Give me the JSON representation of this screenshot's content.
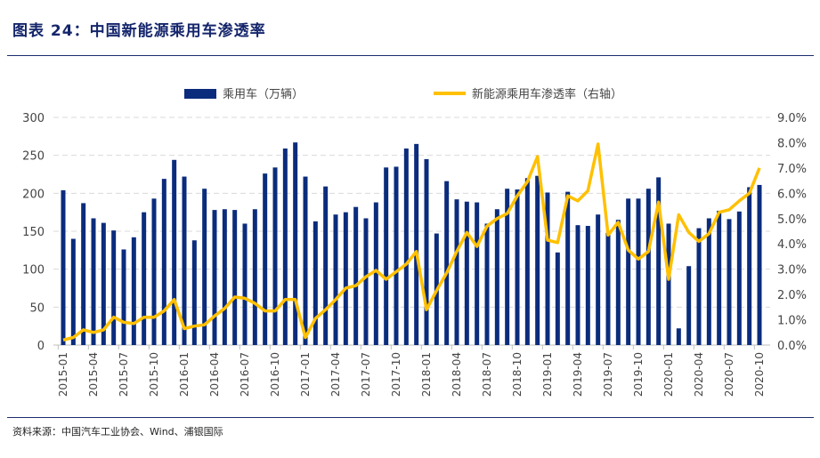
{
  "title": "图表 24：中国新能源乘用车渗透率",
  "source": "资料来源：中国汽车工业协会、Wind、浦银国际",
  "colors": {
    "bar": "#0b2c7c",
    "line": "#ffc000",
    "title": "#14256b"
  },
  "chart_data": {
    "type": "bar+line",
    "legend_position": "top",
    "grid": "horizontal dashed",
    "x": [
      "2015-01",
      "2015-02",
      "2015-03",
      "2015-04",
      "2015-05",
      "2015-06",
      "2015-07",
      "2015-08",
      "2015-09",
      "2015-10",
      "2015-11",
      "2015-12",
      "2016-01",
      "2016-02",
      "2016-03",
      "2016-04",
      "2016-05",
      "2016-06",
      "2016-07",
      "2016-08",
      "2016-09",
      "2016-10",
      "2016-11",
      "2016-12",
      "2017-01",
      "2017-02",
      "2017-03",
      "2017-04",
      "2017-05",
      "2017-06",
      "2017-07",
      "2017-08",
      "2017-09",
      "2017-10",
      "2017-11",
      "2017-12",
      "2018-01",
      "2018-02",
      "2018-03",
      "2018-04",
      "2018-05",
      "2018-06",
      "2018-07",
      "2018-08",
      "2018-09",
      "2018-10",
      "2018-11",
      "2018-12",
      "2019-01",
      "2019-02",
      "2019-03",
      "2019-04",
      "2019-05",
      "2019-06",
      "2019-07",
      "2019-08",
      "2019-09",
      "2019-10",
      "2019-11",
      "2019-12",
      "2020-01",
      "2020-02",
      "2020-03",
      "2020-04",
      "2020-05",
      "2020-06",
      "2020-07",
      "2020-08",
      "2020-09",
      "2020-10"
    ],
    "x_tick_labels": [
      "2015-01",
      "2015-04",
      "2015-07",
      "2015-10",
      "2016-01",
      "2016-04",
      "2016-07",
      "2016-10",
      "2017-01",
      "2017-04",
      "2017-07",
      "2017-10",
      "2018-01",
      "2018-04",
      "2018-07",
      "2018-10",
      "2019-01",
      "2019-04",
      "2019-07",
      "2019-10",
      "2020-01",
      "2020-04",
      "2020-07",
      "2020-10"
    ],
    "series": [
      {
        "name": "乘用车（万辆）",
        "type": "bar",
        "axis": "left",
        "values": [
          204,
          140,
          187,
          167,
          161,
          151,
          126,
          142,
          175,
          193,
          219,
          244,
          222,
          138,
          206,
          178,
          179,
          178,
          160,
          179,
          226,
          234,
          259,
          267,
          222,
          163,
          209,
          172,
          175,
          182,
          167,
          188,
          234,
          235,
          259,
          265,
          245,
          147,
          216,
          192,
          189,
          188,
          160,
          179,
          206,
          205,
          220,
          223,
          201,
          122,
          202,
          158,
          157,
          172,
          148,
          165,
          193,
          193,
          206,
          221,
          160,
          22,
          104,
          154,
          167,
          177,
          166,
          176,
          208,
          211
        ]
      },
      {
        "name": "新能源乘用车渗透率（右轴）",
        "type": "line",
        "axis": "right",
        "values": [
          0.2,
          0.3,
          0.6,
          0.5,
          0.6,
          1.1,
          0.9,
          0.85,
          1.1,
          1.1,
          1.35,
          1.8,
          0.65,
          0.75,
          0.8,
          1.15,
          1.45,
          1.9,
          1.85,
          1.65,
          1.35,
          1.35,
          1.8,
          1.8,
          0.3,
          1.05,
          1.4,
          1.8,
          2.25,
          2.35,
          2.7,
          2.95,
          2.6,
          2.9,
          3.2,
          3.7,
          1.4,
          2.15,
          2.85,
          3.7,
          4.45,
          3.9,
          4.7,
          5.0,
          5.2,
          5.9,
          6.45,
          7.45,
          4.15,
          4.05,
          5.9,
          5.7,
          6.1,
          7.95,
          4.35,
          4.85,
          3.75,
          3.4,
          3.7,
          5.65,
          2.6,
          5.15,
          4.45,
          4.1,
          4.4,
          5.25,
          5.35,
          5.7,
          6.0,
          7.0
        ]
      }
    ],
    "y_left": {
      "ylim": [
        0,
        300
      ],
      "ticks": [
        "0",
        "50",
        "100",
        "150",
        "200",
        "250",
        "300"
      ]
    },
    "y_right": {
      "ylim": [
        0,
        9
      ],
      "unit": "%",
      "ticks": [
        "0.0%",
        "1.0%",
        "2.0%",
        "3.0%",
        "4.0%",
        "5.0%",
        "6.0%",
        "7.0%",
        "8.0%",
        "9.0%"
      ]
    }
  }
}
